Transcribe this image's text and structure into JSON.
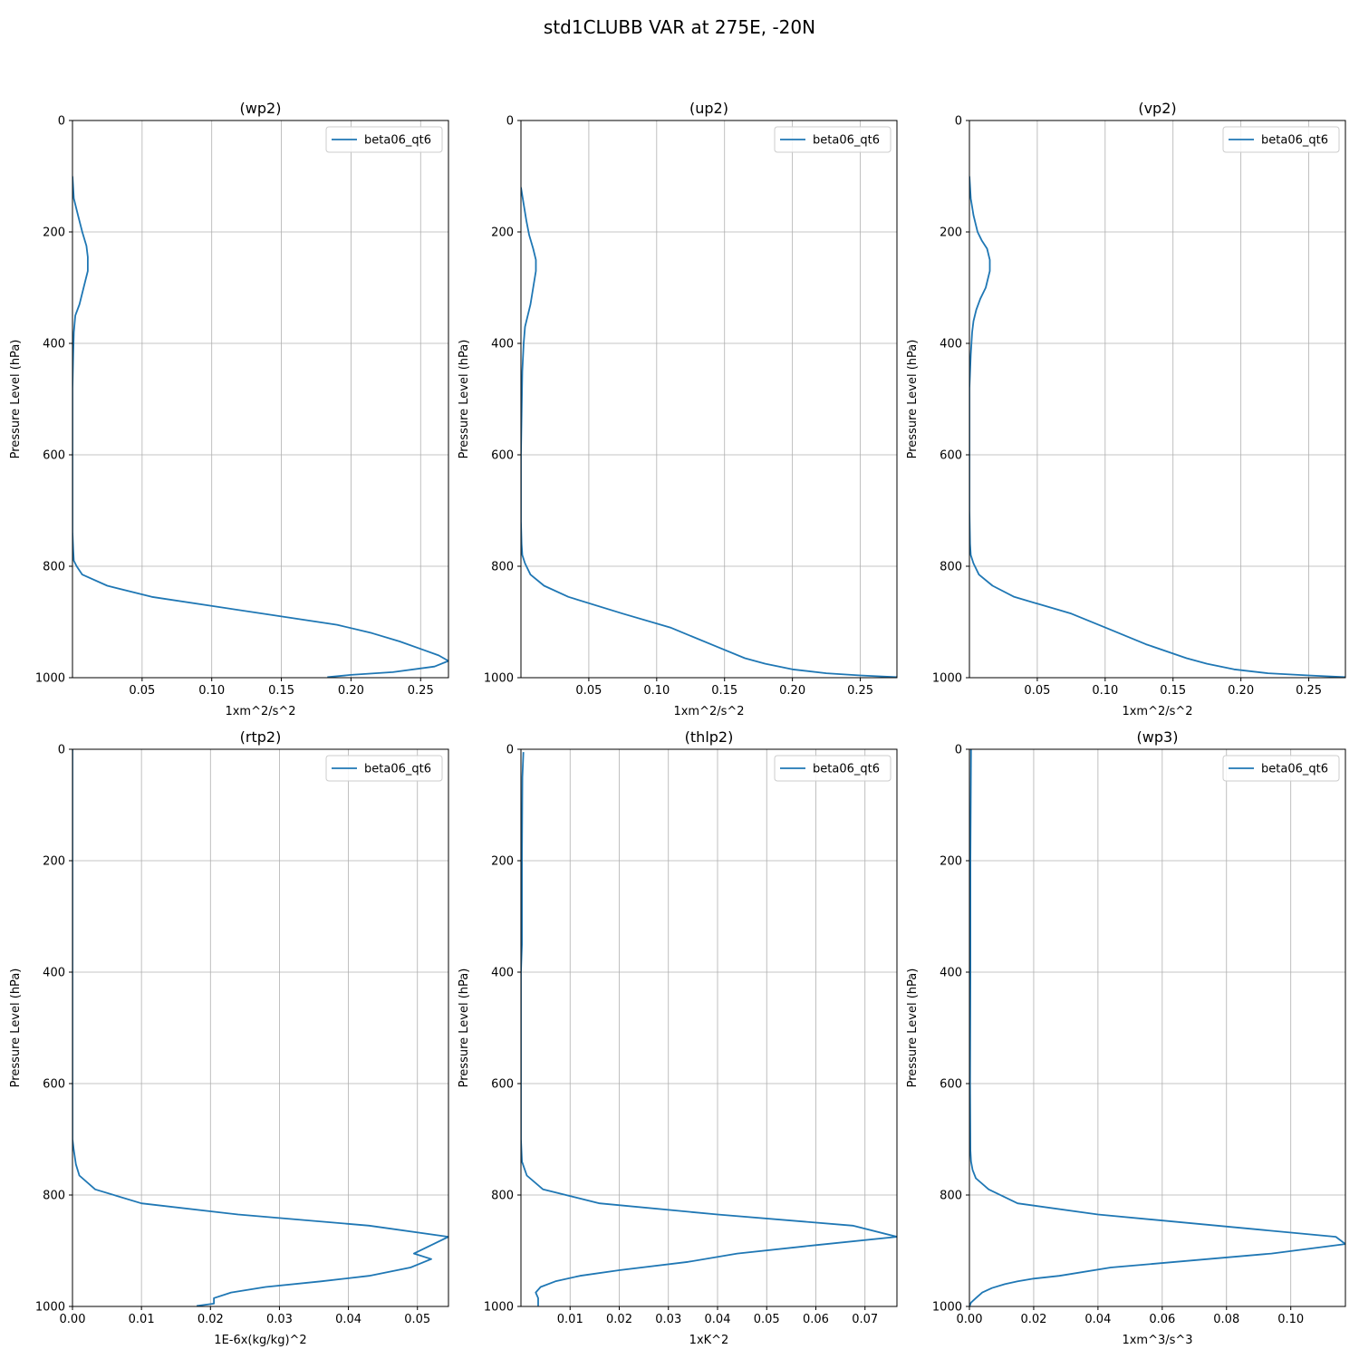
{
  "figure": {
    "title": "std1CLUBB VAR at 275E, -20N"
  },
  "chart_data": [
    {
      "type": "line",
      "title": "(wp2)",
      "xlabel": "1xm^2/s^2",
      "ylabel": "Pressure Level (hPa)",
      "xlim": [
        0,
        0.27
      ],
      "ylim": [
        1000,
        0
      ],
      "xticks": [
        0.05,
        0.1,
        0.15,
        0.2,
        0.25
      ],
      "xtick_labels": [
        "0.05",
        "0.10",
        "0.15",
        "0.20",
        "0.25"
      ],
      "yticks": [
        0,
        200,
        400,
        600,
        800,
        1000
      ],
      "ytick_labels": [
        "0",
        "200",
        "400",
        "600",
        "800",
        "1000"
      ],
      "grid": true,
      "legend": "upper-right",
      "series": [
        {
          "name": "beta06_qt6",
          "color": "#1f77b4",
          "x": [
            0,
            0.001,
            0.004,
            0.007,
            0.01,
            0.011,
            0.011,
            0.008,
            0.005,
            0.002,
            0.001,
            0.0005,
            0,
            0,
            0,
            0,
            0.0005,
            0.001,
            0.003,
            0.007,
            0.025,
            0.057,
            0.15,
            0.19,
            0.215,
            0.235,
            0.252,
            0.263,
            0.27,
            0.26,
            0.23,
            0.2,
            0.183
          ],
          "y": [
            100,
            140,
            170,
            200,
            225,
            245,
            270,
            300,
            330,
            350,
            380,
            420,
            480,
            600,
            700,
            740,
            770,
            790,
            800,
            815,
            835,
            855,
            890,
            905,
            920,
            935,
            950,
            960,
            970,
            980,
            990,
            995,
            999
          ]
        }
      ]
    },
    {
      "type": "line",
      "title": "(up2)",
      "xlabel": "1xm^2/s^2",
      "ylabel": "Pressure Level (hPa)",
      "xlim": [
        0,
        0.277
      ],
      "ylim": [
        1000,
        0
      ],
      "xticks": [
        0.05,
        0.1,
        0.15,
        0.2,
        0.25
      ],
      "xtick_labels": [
        "0.05",
        "0.10",
        "0.15",
        "0.20",
        "0.25"
      ],
      "yticks": [
        0,
        200,
        400,
        600,
        800,
        1000
      ],
      "ytick_labels": [
        "0",
        "200",
        "400",
        "600",
        "800",
        "1000"
      ],
      "grid": true,
      "legend": "upper-right",
      "series": [
        {
          "name": "beta06_qt6",
          "color": "#1f77b4",
          "x": [
            0,
            0.002,
            0.004,
            0.006,
            0.009,
            0.011,
            0.011,
            0.009,
            0.007,
            0.005,
            0.003,
            0.002,
            0.001,
            0,
            0,
            0.0005,
            0.001,
            0.003,
            0.007,
            0.017,
            0.035,
            0.075,
            0.11,
            0.145,
            0.165,
            0.18,
            0.2,
            0.225,
            0.25,
            0.277
          ],
          "y": [
            120,
            150,
            180,
            205,
            230,
            250,
            270,
            300,
            330,
            350,
            370,
            400,
            450,
            600,
            720,
            760,
            780,
            795,
            815,
            835,
            855,
            885,
            910,
            945,
            965,
            975,
            985,
            992,
            996,
            999
          ]
        }
      ]
    },
    {
      "type": "line",
      "title": "(vp2)",
      "xlabel": "1xm^2/s^2",
      "ylabel": "Pressure Level (hPa)",
      "xlim": [
        0,
        0.277
      ],
      "ylim": [
        1000,
        0
      ],
      "xticks": [
        0.05,
        0.1,
        0.15,
        0.2,
        0.25
      ],
      "xtick_labels": [
        "0.05",
        "0.10",
        "0.15",
        "0.20",
        "0.25"
      ],
      "yticks": [
        0,
        200,
        400,
        600,
        800,
        1000
      ],
      "ytick_labels": [
        "0",
        "200",
        "400",
        "600",
        "800",
        "1000"
      ],
      "grid": true,
      "legend": "upper-right",
      "series": [
        {
          "name": "beta06_qt6",
          "color": "#1f77b4",
          "x": [
            0,
            0.001,
            0.003,
            0.006,
            0.009,
            0.013,
            0.015,
            0.015,
            0.012,
            0.008,
            0.005,
            0.003,
            0.002,
            0.001,
            0,
            0,
            0.0005,
            0.001,
            0.003,
            0.007,
            0.017,
            0.033,
            0.075,
            0.1,
            0.13,
            0.16,
            0.175,
            0.195,
            0.22,
            0.25,
            0.277
          ],
          "y": [
            100,
            140,
            170,
            200,
            215,
            230,
            250,
            270,
            300,
            320,
            340,
            360,
            380,
            420,
            480,
            700,
            760,
            780,
            795,
            815,
            835,
            855,
            885,
            910,
            940,
            965,
            975,
            985,
            992,
            996,
            999
          ]
        }
      ]
    },
    {
      "type": "line",
      "title": "(rtp2)",
      "xlabel": "1E-6x(kg/kg)^2",
      "ylabel": "Pressure Level (hPa)",
      "xlim": [
        0,
        0.0545
      ],
      "ylim": [
        1000,
        0
      ],
      "xticks": [
        0.0,
        0.01,
        0.02,
        0.03,
        0.04,
        0.05
      ],
      "xtick_labels": [
        "0.00",
        "0.01",
        "0.02",
        "0.03",
        "0.04",
        "0.05"
      ],
      "yticks": [
        0,
        200,
        400,
        600,
        800,
        1000
      ],
      "ytick_labels": [
        "0",
        "200",
        "400",
        "600",
        "800",
        "1000"
      ],
      "grid": true,
      "legend": "upper-right",
      "series": [
        {
          "name": "beta06_qt6",
          "color": "#1f77b4",
          "x": [
            0,
            0,
            0.0002,
            0.0005,
            0.001,
            0.0033,
            0.01,
            0.024,
            0.043,
            0.0545,
            0.052,
            0.0495,
            0.052,
            0.049,
            0.043,
            0.036,
            0.028,
            0.023,
            0.0205,
            0.0205,
            0.0205,
            0.018
          ],
          "y": [
            0,
            700,
            720,
            745,
            765,
            790,
            815,
            835,
            855,
            875,
            890,
            905,
            915,
            930,
            945,
            955,
            965,
            975,
            985,
            990,
            995,
            999
          ]
        }
      ]
    },
    {
      "type": "line",
      "title": "(thlp2)",
      "xlabel": "1xK^2",
      "ylabel": "Pressure Level (hPa)",
      "xlim": [
        0,
        0.0765
      ],
      "ylim": [
        1000,
        0
      ],
      "xticks": [
        0.01,
        0.02,
        0.03,
        0.04,
        0.05,
        0.06,
        0.07
      ],
      "xtick_labels": [
        "0.01",
        "0.02",
        "0.03",
        "0.04",
        "0.05",
        "0.06",
        "0.07"
      ],
      "yticks": [
        0,
        200,
        400,
        600,
        800,
        1000
      ],
      "ytick_labels": [
        "0",
        "200",
        "400",
        "600",
        "800",
        "1000"
      ],
      "grid": true,
      "legend": "upper-right",
      "series": [
        {
          "name": "beta06_qt6",
          "color": "#1f77b4",
          "x": [
            0.0005,
            0.0003,
            0.0002,
            0.0002,
            0.0002,
            0,
            0,
            0,
            0.0002,
            0.0012,
            0.0045,
            0.016,
            0.04,
            0.0675,
            0.0765,
            0.06,
            0.044,
            0.034,
            0.02,
            0.012,
            0.007,
            0.004,
            0.003,
            0.0035,
            0.0035,
            0.0035
          ],
          "y": [
            5,
            50,
            200,
            300,
            350,
            400,
            600,
            700,
            740,
            765,
            790,
            815,
            835,
            855,
            875,
            890,
            905,
            920,
            935,
            945,
            955,
            965,
            975,
            985,
            990,
            999
          ]
        }
      ]
    },
    {
      "type": "line",
      "title": "(wp3)",
      "xlabel": "1xm^3/s^3",
      "ylabel": "Pressure Level (hPa)",
      "xlim": [
        0,
        0.117
      ],
      "ylim": [
        1000,
        0
      ],
      "xticks": [
        0.0,
        0.02,
        0.04,
        0.06,
        0.08,
        0.1
      ],
      "xtick_labels": [
        "0.00",
        "0.02",
        "0.04",
        "0.06",
        "0.08",
        "0.10"
      ],
      "yticks": [
        0,
        200,
        400,
        600,
        800,
        1000
      ],
      "ytick_labels": [
        "0",
        "200",
        "400",
        "600",
        "800",
        "1000"
      ],
      "grid": true,
      "legend": "upper-right",
      "series": [
        {
          "name": "beta06_qt6",
          "color": "#1f77b4",
          "x": [
            0.0005,
            0.0003,
            0.0003,
            0.0002,
            0.0003,
            0.0005,
            0.001,
            0.002,
            0.006,
            0.015,
            0.04,
            0.114,
            0.117,
            0.094,
            0.044,
            0.028,
            0.02,
            0.015,
            0.011,
            0.007,
            0.004,
            0.002,
            0.0005,
            0
          ],
          "y": [
            0,
            200,
            400,
            600,
            720,
            740,
            755,
            770,
            790,
            815,
            835,
            875,
            888,
            905,
            930,
            945,
            950,
            955,
            960,
            967,
            975,
            985,
            993,
            1000
          ]
        }
      ]
    }
  ]
}
